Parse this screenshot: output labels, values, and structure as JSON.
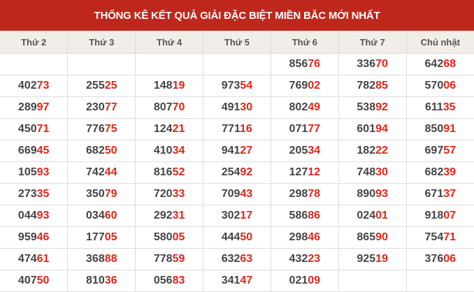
{
  "title": "THỐNG KÊ KẾT QUẢ GIẢI ĐẶC BIỆT MIỀN BẮC MỚI NHẤT",
  "colors": {
    "header_bg": "#c0271c",
    "column_header_bg": "#f1eee9",
    "last_two_digits": "#e0261b",
    "digits": "#444444"
  },
  "columns": [
    "Thứ 2",
    "Thứ 3",
    "Thứ 4",
    "Thứ 5",
    "Thứ 6",
    "Thứ 7",
    "Chủ nhật"
  ],
  "rows": [
    [
      "",
      "",
      "",
      "",
      "85676",
      "33670",
      "64268"
    ],
    [
      "40273",
      "25525",
      "14819",
      "97354",
      "76902",
      "78285",
      "57006"
    ],
    [
      "28997",
      "23077",
      "80770",
      "49130",
      "80249",
      "53892",
      "61135"
    ],
    [
      "45071",
      "77675",
      "12421",
      "77116",
      "07177",
      "60194",
      "85091"
    ],
    [
      "66945",
      "68250",
      "41034",
      "94127",
      "20534",
      "18222",
      "69757"
    ],
    [
      "10593",
      "74244",
      "81652",
      "25492",
      "12712",
      "74830",
      "68239"
    ],
    [
      "27335",
      "35079",
      "72033",
      "70943",
      "29878",
      "89093",
      "67137"
    ],
    [
      "04493",
      "03460",
      "29231",
      "30217",
      "58686",
      "02401",
      "91807"
    ],
    [
      "95946",
      "17705",
      "58005",
      "44450",
      "29846",
      "86590",
      "75471"
    ],
    [
      "47461",
      "36888",
      "77859",
      "63263",
      "43223",
      "92519",
      "37606"
    ],
    [
      "40750",
      "81036",
      "05683",
      "34147",
      "02109",
      "",
      ""
    ]
  ]
}
